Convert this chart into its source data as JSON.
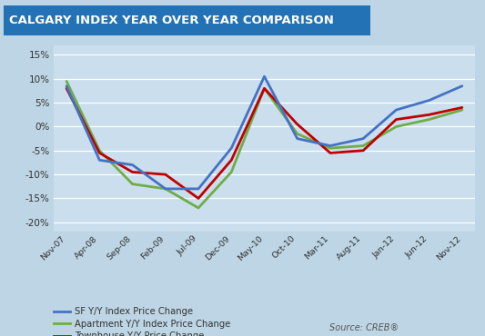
{
  "title": "CALGARY INDEX YEAR OVER YEAR COMPARISON",
  "title_bg_color": "#2272B5",
  "title_text_color": "#FFFFFF",
  "background_color": "#BDD5E5",
  "plot_bg_color": "#CADEED",
  "source_text": "Source: CREB®",
  "x_labels": [
    "Nov-07",
    "Apr-08",
    "Sep-08",
    "Feb-09",
    "Jul-09",
    "Dec-09",
    "May-10",
    "Oct-10",
    "Mar-11",
    "Aug-11",
    "Jan-12",
    "Jun-12",
    "Nov-12"
  ],
  "sf_values": [
    8.5,
    -7.0,
    -8.0,
    -13.0,
    -13.0,
    -4.5,
    10.5,
    -2.5,
    -4.0,
    -2.5,
    3.5,
    5.5,
    8.5
  ],
  "apartment_values": [
    9.5,
    -5.0,
    -12.0,
    -13.0,
    -17.0,
    -9.5,
    8.0,
    -1.5,
    -4.5,
    -4.0,
    0.0,
    1.5,
    3.5
  ],
  "townhouse_values": [
    8.0,
    -5.5,
    -9.5,
    -10.0,
    -15.0,
    -7.0,
    8.0,
    0.5,
    -5.5,
    -5.0,
    1.5,
    2.5,
    4.0
  ],
  "sf_color": "#4472C4",
  "apartment_color": "#70AD47",
  "townhouse_color": "#C00000",
  "ylim": [
    -22,
    17
  ],
  "yticks": [
    -20,
    -15,
    -10,
    -5,
    0,
    5,
    10,
    15
  ],
  "legend_labels": [
    "SF Y/Y Index Price Change",
    "Apartment Y/Y Index Price Change",
    "Townhouse Y/Y Price Change"
  ]
}
